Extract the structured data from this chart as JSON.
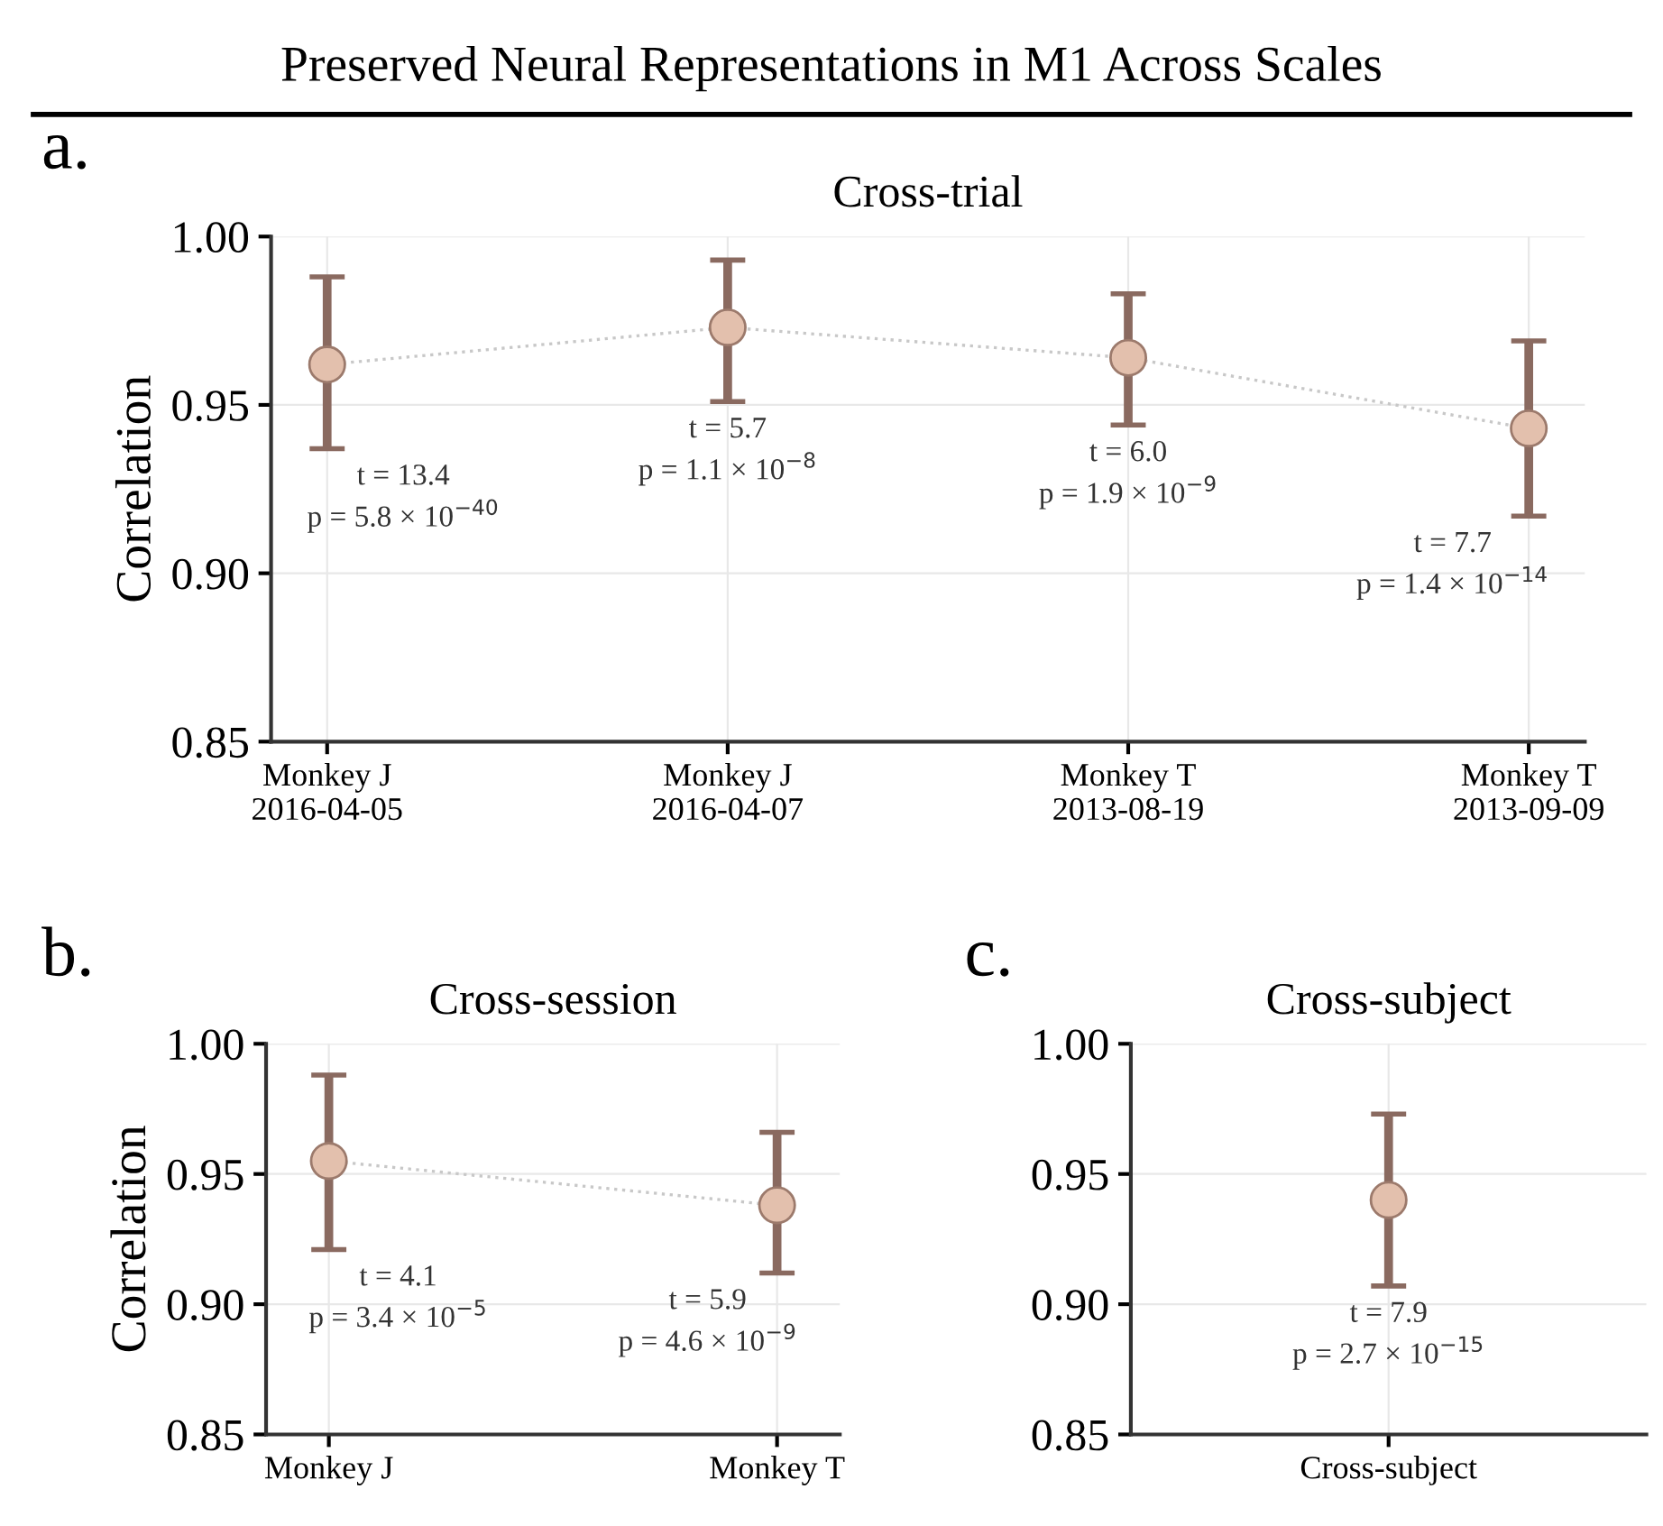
{
  "chart_data": [
    {
      "type": "line",
      "title": "Cross-trial",
      "ylabel": "Correlation",
      "categories": [
        "Monkey J\n2016-04-05",
        "Monkey J\n2016-04-07",
        "Monkey T\n2013-08-19",
        "Monkey T\n2013-09-09"
      ],
      "series": [
        {
          "color": "#e3c0ad",
          "values": [
            0.962,
            0.973,
            0.964,
            0.943
          ],
          "errors": [
            [
              0.937,
              0.988
            ],
            [
              0.951,
              0.993
            ],
            [
              0.944,
              0.983
            ],
            [
              0.917,
              0.969
            ]
          ]
        }
      ],
      "ylim": [
        0.85,
        1.0
      ],
      "yticks": [
        {
          "value": 0.85,
          "label": "0.85"
        },
        {
          "value": 0.9,
          "label": "0.90"
        },
        {
          "value": 0.95,
          "label": "0.95"
        },
        {
          "value": 1.0,
          "label": "1.00"
        }
      ],
      "grid": true,
      "marker": "circle",
      "line_style": "dotted",
      "annotations": [
        "a.",
        "Preserved Neural Representations in M1 Across Scales",
        {
          "text": "t = 13.4\np = 5.8 × 10$^{−40}$",
          "x": "Monkey J\n2016-04-05",
          "y": 0.937
        },
        {
          "text": "t = 5.7\np = 1.1 × 10$^{−8}$",
          "x": "Monkey J\n2016-04-07",
          "y": 0.951
        },
        {
          "text": "t = 6.0\np = 1.9 × 10$^{−9}$",
          "x": "Monkey T\n2013-08-19",
          "y": 0.944
        },
        {
          "text": "t = 7.7\np = 1.4 × 10$^{−14}$",
          "x": "Monkey T\n2013-09-09",
          "y": 0.917
        }
      ]
    },
    {
      "type": "line",
      "title": "Cross-session",
      "ylabel": "Correlation",
      "categories": [
        "Monkey J",
        "Monkey T"
      ],
      "series": [
        {
          "color": "#e3c0ad",
          "values": [
            0.955,
            0.938
          ],
          "errors": [
            [
              0.921,
              0.988
            ],
            [
              0.912,
              0.966
            ]
          ]
        }
      ],
      "ylim": [
        0.85,
        1.0
      ],
      "yticks": [
        {
          "value": 0.85,
          "label": "0.85"
        },
        {
          "value": 0.9,
          "label": "0.90"
        },
        {
          "value": 0.95,
          "label": "0.95"
        },
        {
          "value": 1.0,
          "label": "1.00"
        }
      ],
      "grid": true,
      "marker": "circle",
      "line_style": "dotted",
      "annotations": [
        "b.",
        {
          "text": "t = 4.1\np = 3.4 × 10$^{−5}$",
          "x": "Monkey J",
          "y": 0.921
        },
        {
          "text": "t = 5.9\np = 4.6 × 10$^{−9}$",
          "x": "Monkey T",
          "y": 0.912
        }
      ]
    },
    {
      "type": "scatter",
      "title": "Cross-subject",
      "categories": [
        "Cross-subject"
      ],
      "series": [
        {
          "color": "#e3c0ad",
          "values": [
            0.94
          ],
          "errors": [
            [
              0.907,
              0.973
            ]
          ]
        }
      ],
      "ylim": [
        0.85,
        1.0
      ],
      "yticks": [
        {
          "value": 0.85,
          "label": "0.85"
        },
        {
          "value": 0.9,
          "label": "0.90"
        },
        {
          "value": 0.95,
          "label": "0.95"
        },
        {
          "value": 1.0,
          "label": "1.00"
        }
      ],
      "grid": true,
      "marker": "circle",
      "annotations": [
        "c.",
        {
          "text": "t = 7.9\np = 2.7 × 10$^{−15}$",
          "x": "Cross-subject",
          "y": 0.907
        }
      ]
    }
  ]
}
